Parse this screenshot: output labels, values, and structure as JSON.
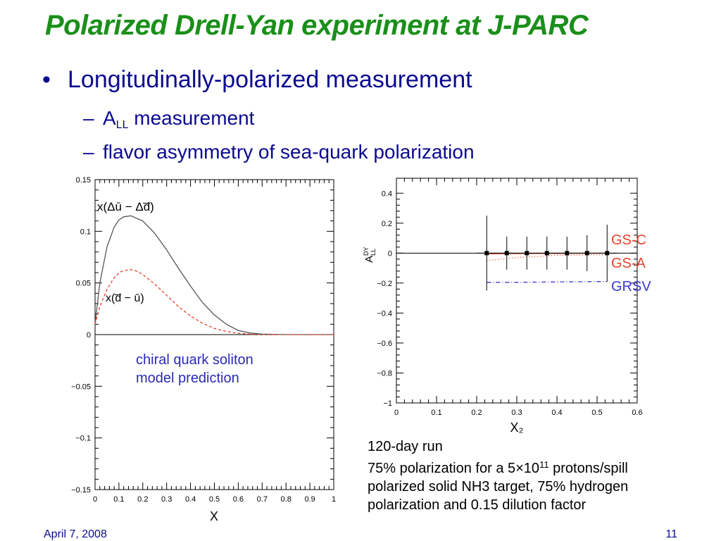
{
  "slide": {
    "title": "Polarized Drell-Yan experiment at J-PARC",
    "bullet": "Longitudinally-polarized measurement",
    "sub1_main": "A",
    "sub1_subscript": "LL",
    "sub1_rest": " measurement",
    "sub2": "flavor asymmetry of sea-quark polarization",
    "chiral_line1": "chiral quark soliton",
    "chiral_line2": "model prediction",
    "run_line1": "120-day run",
    "run_line2_a": "75% polarization for a 5×10",
    "run_line2_exp": "11",
    "run_line2_b": " protons/spill",
    "run_line3": "polarized solid NH3 target, 75% hydrogen",
    "run_line4": "polarization and 0.15 dilution factor",
    "footer_date": "April 7, 2008",
    "footer_page": "11"
  },
  "chart_data": [
    {
      "type": "line",
      "xlabel": "X",
      "ylabel": "",
      "xlim": [
        0,
        1
      ],
      "ylim": [
        -0.15,
        0.15
      ],
      "x_ticks": [
        "0",
        "0.1",
        "0.2",
        "0.3",
        "0.4",
        "0.5",
        "0.6",
        "0.7",
        "0.8",
        "0.9",
        "1"
      ],
      "y_ticks": [
        "0.15",
        "0.1",
        "0.05",
        "0",
        "−0.05",
        "−0.1",
        "−0.15"
      ],
      "series": [
        {
          "name": "x(Δū − Δd̅)",
          "color": "#555555",
          "style": "solid",
          "x": [
            0,
            0.02,
            0.05,
            0.08,
            0.1,
            0.12,
            0.15,
            0.2,
            0.25,
            0.3,
            0.35,
            0.4,
            0.45,
            0.5,
            0.55,
            0.6,
            0.65,
            0.7,
            0.8,
            1.0
          ],
          "y": [
            0.01,
            0.05,
            0.085,
            0.104,
            0.111,
            0.114,
            0.115,
            0.11,
            0.098,
            0.082,
            0.064,
            0.047,
            0.031,
            0.019,
            0.01,
            0.004,
            0.0015,
            0.0005,
            0,
            0
          ]
        },
        {
          "name": "x(d̅ − ū)",
          "color": "#e8432a",
          "style": "dashed",
          "x": [
            0,
            0.02,
            0.05,
            0.08,
            0.1,
            0.12,
            0.15,
            0.18,
            0.2,
            0.25,
            0.3,
            0.35,
            0.4,
            0.45,
            0.5,
            0.55,
            0.6,
            0.65,
            0.7,
            0.8,
            1.0
          ],
          "y": [
            0.01,
            0.027,
            0.044,
            0.055,
            0.06,
            0.062,
            0.063,
            0.061,
            0.058,
            0.049,
            0.038,
            0.027,
            0.018,
            0.011,
            0.006,
            0.003,
            0.0012,
            0.0004,
            0.0001,
            0,
            0
          ]
        }
      ]
    },
    {
      "type": "scatter",
      "xlabel": "X₂",
      "ylabel": "A_LL^DY",
      "xlim": [
        0,
        0.6
      ],
      "ylim": [
        -1,
        0.5
      ],
      "x_ticks": [
        "0",
        "0.1",
        "0.2",
        "0.3",
        "0.4",
        "0.5",
        "0.6"
      ],
      "y_ticks": [
        "0.4",
        "0.2",
        "0",
        "−0.2",
        "−0.4",
        "−0.6",
        "−0.8",
        "−1"
      ],
      "points": {
        "x": [
          0.225,
          0.275,
          0.325,
          0.375,
          0.425,
          0.475,
          0.525
        ],
        "y": [
          0,
          0,
          0,
          0,
          0,
          0,
          0
        ],
        "err_up": [
          0.25,
          0.11,
          0.11,
          0.11,
          0.11,
          0.12,
          0.19
        ],
        "err_down": [
          0.25,
          0.11,
          0.11,
          0.11,
          0.11,
          0.12,
          0.19
        ]
      },
      "series": [
        {
          "name": "GS-C",
          "color": "#e8432a",
          "style": "solid",
          "x": [
            0.225,
            0.3,
            0.4,
            0.5,
            0.525
          ],
          "y": [
            -0.005,
            -0.003,
            -0.002,
            -0.001,
            -0.001
          ]
        },
        {
          "name": "GS-A",
          "color": "#e8432a",
          "style": "dotted",
          "x": [
            0.225,
            0.3,
            0.4,
            0.5,
            0.525
          ],
          "y": [
            -0.05,
            -0.03,
            -0.015,
            -0.01,
            -0.01
          ]
        },
        {
          "name": "GRSV",
          "color": "#3a3ad0",
          "style": "dashdot",
          "x": [
            0.225,
            0.3,
            0.4,
            0.5,
            0.525
          ],
          "y": [
            -0.195,
            -0.195,
            -0.192,
            -0.19,
            -0.19
          ]
        }
      ],
      "legend_colors": {
        "GS-C": "#e8432a",
        "GS-A": "#e8432a",
        "GRSV": "#3a3ad0"
      }
    }
  ]
}
